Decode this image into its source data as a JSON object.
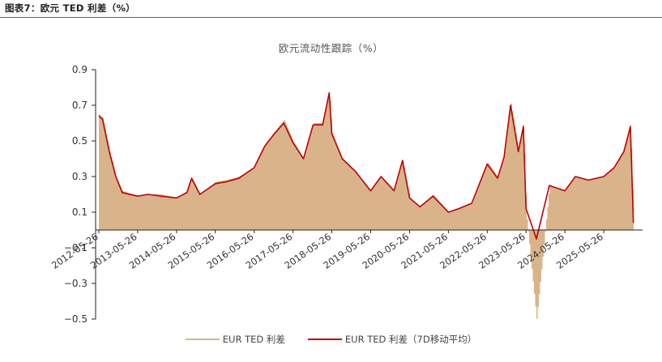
{
  "figure_label": "图表7：欧元 TED 利差（%）",
  "colors": {
    "accent_rule": "#c0392b",
    "raw_series": "#d9b48a",
    "ma_series": "#c00000"
  },
  "chart_data": {
    "type": "area",
    "title": "欧元流动性跟踪（%）",
    "xlabel": "",
    "ylabel": "",
    "ylim": [
      -0.5,
      0.9
    ],
    "yticks": [
      "0.9",
      "0.7",
      "0.5",
      "0.3",
      "0.1",
      "−0.1",
      "−0.3",
      "−0.5"
    ],
    "ytick_values": [
      0.9,
      0.7,
      0.5,
      0.3,
      0.1,
      -0.1,
      -0.3,
      -0.5
    ],
    "xlim": [
      "2012-05-26",
      "2026-05-26"
    ],
    "xticks": [
      "2012-05-26",
      "2013-05-26",
      "2014-05-26",
      "2015-05-26",
      "2016-05-26",
      "2017-05-26",
      "2018-05-26",
      "2019-05-26",
      "2020-05-26",
      "2021-05-26",
      "2022-05-26",
      "2023-05-26",
      "2024-05-26",
      "2025-05-26"
    ],
    "grid": false,
    "legend_position": "bottom",
    "series": [
      {
        "name": "EUR TED 利差",
        "style": "area-bar",
        "x": [
          "2012-05-26",
          "2012-07-01",
          "2012-09-01",
          "2012-11-01",
          "2013-01-01",
          "2013-05-26",
          "2013-09-01",
          "2014-01-01",
          "2014-05-26",
          "2014-09-01",
          "2014-10-15",
          "2015-01-01",
          "2015-05-26",
          "2015-09-01",
          "2016-01-01",
          "2016-05-26",
          "2016-09-01",
          "2016-12-01",
          "2017-03-01",
          "2017-05-26",
          "2017-09-01",
          "2017-12-01",
          "2018-03-01",
          "2018-05-01",
          "2018-05-26",
          "2018-09-01",
          "2019-01-01",
          "2019-05-26",
          "2019-09-01",
          "2020-01-01",
          "2020-03-20",
          "2020-05-26",
          "2020-09-01",
          "2021-01-01",
          "2021-05-26",
          "2021-09-01",
          "2022-01-01",
          "2022-05-26",
          "2022-09-01",
          "2022-11-01",
          "2023-01-01",
          "2023-03-15",
          "2023-05-01",
          "2023-05-26",
          "2023-09-01",
          "2024-01-01",
          "2024-05-26",
          "2024-09-01",
          "2025-01-01",
          "2025-05-26",
          "2025-09-01",
          "2025-12-01",
          "2026-02-01",
          "2026-03-01"
        ],
        "y": [
          0.65,
          0.63,
          0.45,
          0.3,
          0.22,
          0.19,
          0.2,
          0.2,
          0.18,
          0.22,
          0.3,
          0.2,
          0.27,
          0.28,
          0.3,
          0.35,
          0.48,
          0.55,
          0.62,
          0.5,
          0.4,
          0.6,
          0.6,
          0.78,
          0.55,
          0.4,
          0.33,
          0.22,
          0.3,
          0.22,
          0.4,
          0.18,
          0.13,
          0.2,
          0.1,
          0.12,
          0.15,
          0.38,
          0.3,
          0.42,
          0.72,
          0.45,
          0.6,
          0.1,
          -0.5,
          0.25,
          0.22,
          0.3,
          0.28,
          0.3,
          0.35,
          0.45,
          0.6,
          0.05
        ]
      },
      {
        "name": "EUR TED 利差（7D移动平均）",
        "style": "line",
        "x": [
          "2012-05-26",
          "2012-07-01",
          "2012-09-01",
          "2012-11-01",
          "2013-01-01",
          "2013-05-26",
          "2013-09-01",
          "2014-01-01",
          "2014-05-26",
          "2014-09-01",
          "2014-10-15",
          "2015-01-01",
          "2015-05-26",
          "2015-09-01",
          "2016-01-01",
          "2016-05-26",
          "2016-09-01",
          "2016-12-01",
          "2017-03-01",
          "2017-05-26",
          "2017-09-01",
          "2017-12-01",
          "2018-03-01",
          "2018-05-01",
          "2018-05-26",
          "2018-09-01",
          "2019-01-01",
          "2019-05-26",
          "2019-09-01",
          "2020-01-01",
          "2020-03-20",
          "2020-05-26",
          "2020-09-01",
          "2021-01-01",
          "2021-05-26",
          "2021-09-01",
          "2022-01-01",
          "2022-05-26",
          "2022-09-01",
          "2022-11-01",
          "2023-01-01",
          "2023-03-15",
          "2023-05-01",
          "2023-05-26",
          "2023-09-01",
          "2024-01-01",
          "2024-05-26",
          "2024-09-01",
          "2025-01-01",
          "2025-05-26",
          "2025-09-01",
          "2025-12-01",
          "2026-02-01",
          "2026-03-01"
        ],
        "y": [
          0.64,
          0.62,
          0.44,
          0.3,
          0.21,
          0.19,
          0.2,
          0.19,
          0.18,
          0.21,
          0.29,
          0.2,
          0.26,
          0.27,
          0.29,
          0.35,
          0.47,
          0.54,
          0.6,
          0.49,
          0.4,
          0.59,
          0.59,
          0.77,
          0.54,
          0.4,
          0.33,
          0.22,
          0.3,
          0.22,
          0.39,
          0.18,
          0.13,
          0.19,
          0.1,
          0.12,
          0.15,
          0.37,
          0.29,
          0.41,
          0.7,
          0.44,
          0.58,
          0.12,
          -0.05,
          0.25,
          0.22,
          0.3,
          0.28,
          0.3,
          0.35,
          0.44,
          0.58,
          0.04
        ]
      }
    ]
  }
}
